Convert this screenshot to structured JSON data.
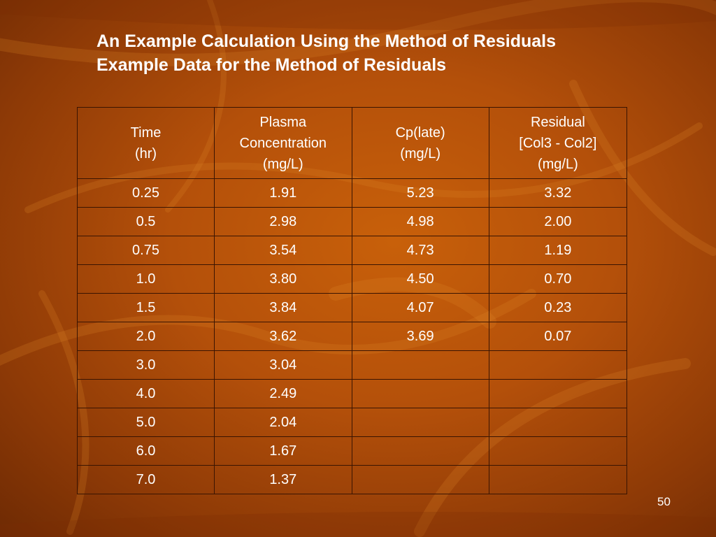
{
  "title": {
    "line1": "An Example Calculation Using the Method of Residuals",
    "line2": "Example Data for the Method of Residuals"
  },
  "table": {
    "headers": [
      [
        "Time",
        "(hr)"
      ],
      [
        "Plasma",
        "Concentration",
        "(mg/L)"
      ],
      [
        "Cp(late)",
        "(mg/L)"
      ],
      [
        "Residual",
        "[Col3 - Col2]",
        "(mg/L)"
      ]
    ],
    "rows": [
      [
        "0.25",
        "1.91",
        "5.23",
        "3.32"
      ],
      [
        "0.5",
        "2.98",
        "4.98",
        "2.00"
      ],
      [
        "0.75",
        "3.54",
        "4.73",
        "1.19"
      ],
      [
        "1.0",
        "3.80",
        "4.50",
        "0.70"
      ],
      [
        "1.5",
        "3.84",
        "4.07",
        "0.23"
      ],
      [
        "2.0",
        "3.62",
        "3.69",
        "0.07"
      ],
      [
        "3.0",
        "3.04",
        "",
        ""
      ],
      [
        "4.0",
        "2.49",
        "",
        ""
      ],
      [
        "5.0",
        "2.04",
        "",
        ""
      ],
      [
        "6.0",
        "1.67",
        "",
        ""
      ],
      [
        "7.0",
        "1.37",
        "",
        ""
      ]
    ]
  },
  "page_number": "50",
  "colors": {
    "background": "#b4500a",
    "text": "#ffffff",
    "grid": "#3a1402"
  }
}
